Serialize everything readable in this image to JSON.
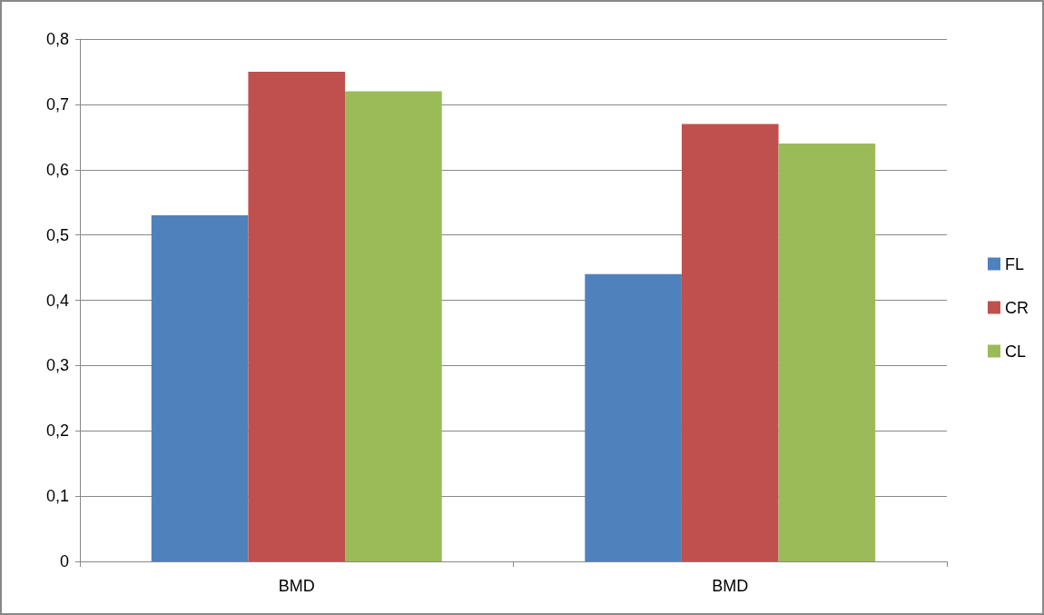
{
  "chart_data": {
    "type": "bar",
    "categories": [
      "BMD",
      "BMD"
    ],
    "series": [
      {
        "name": "FL",
        "color": "#4f81bd",
        "values": [
          0.53,
          0.44
        ]
      },
      {
        "name": "CR",
        "color": "#c0504d",
        "values": [
          0.75,
          0.67
        ]
      },
      {
        "name": "CL",
        "color": "#9bbb59",
        "values": [
          0.72,
          0.64
        ]
      }
    ],
    "ylim": [
      0,
      0.8
    ],
    "yticks": [
      0,
      {
        "value": 0.1,
        "label": "0,1"
      },
      {
        "value": 0.2,
        "label": "0,2"
      },
      {
        "value": 0.3,
        "label": "0,3"
      },
      {
        "value": 0.4,
        "label": "0,4"
      },
      {
        "value": 0.5,
        "label": "0,5"
      },
      {
        "value": 0.6,
        "label": "0,6"
      },
      {
        "value": 0.7,
        "label": "0,7"
      },
      {
        "value": 0.8,
        "label": "0,8"
      }
    ],
    "grid": "y",
    "legend": "right"
  }
}
